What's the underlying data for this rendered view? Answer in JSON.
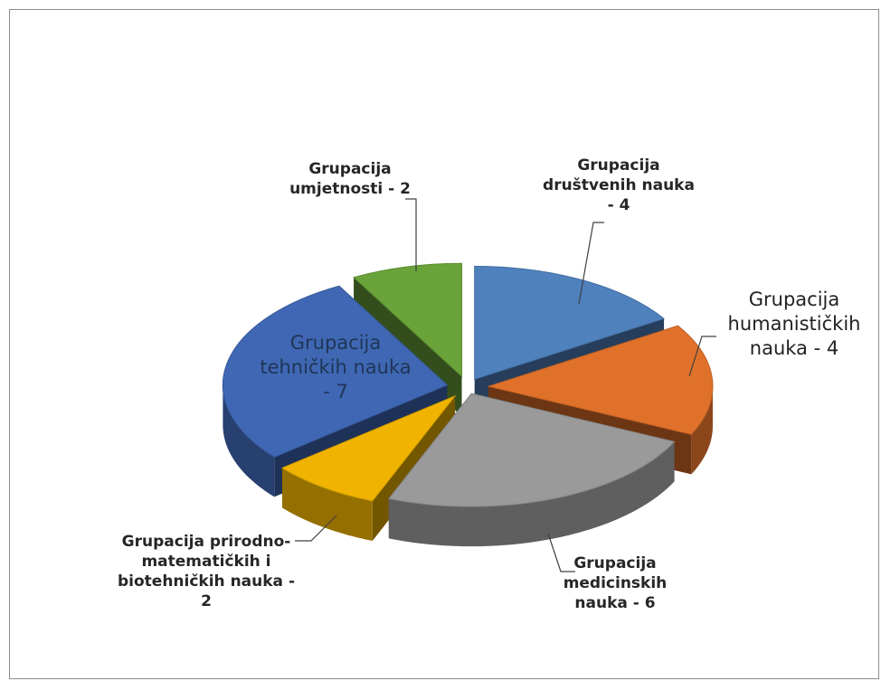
{
  "chart_data": {
    "type": "pie",
    "style": "3d-exploded",
    "title": "",
    "legend": "none",
    "slices": [
      {
        "key": "drustvene",
        "label": "Grupacija društvenih nauka - 4",
        "value": 4,
        "color": "#4f81bd"
      },
      {
        "key": "humanisticke",
        "label": "Grupacija humanističkih nauka - 4",
        "value": 4,
        "color": "#e0712a"
      },
      {
        "key": "medicinske",
        "label": "Grupacija medicinskih nauka - 6",
        "value": 6,
        "color": "#9a9a9a"
      },
      {
        "key": "prirodne",
        "label": "Grupacija prirodno-matematičkih i biotehničkih nauka - 2",
        "value": 2,
        "color": "#f0b400"
      },
      {
        "key": "tehnicke",
        "label": "Grupacija tehničkih nauka - 7",
        "value": 7,
        "color": "#3f67b3"
      },
      {
        "key": "umjetnosti",
        "label": "Grupacija umjetnosti - 2",
        "value": 2,
        "color": "#6aa33a"
      }
    ]
  }
}
